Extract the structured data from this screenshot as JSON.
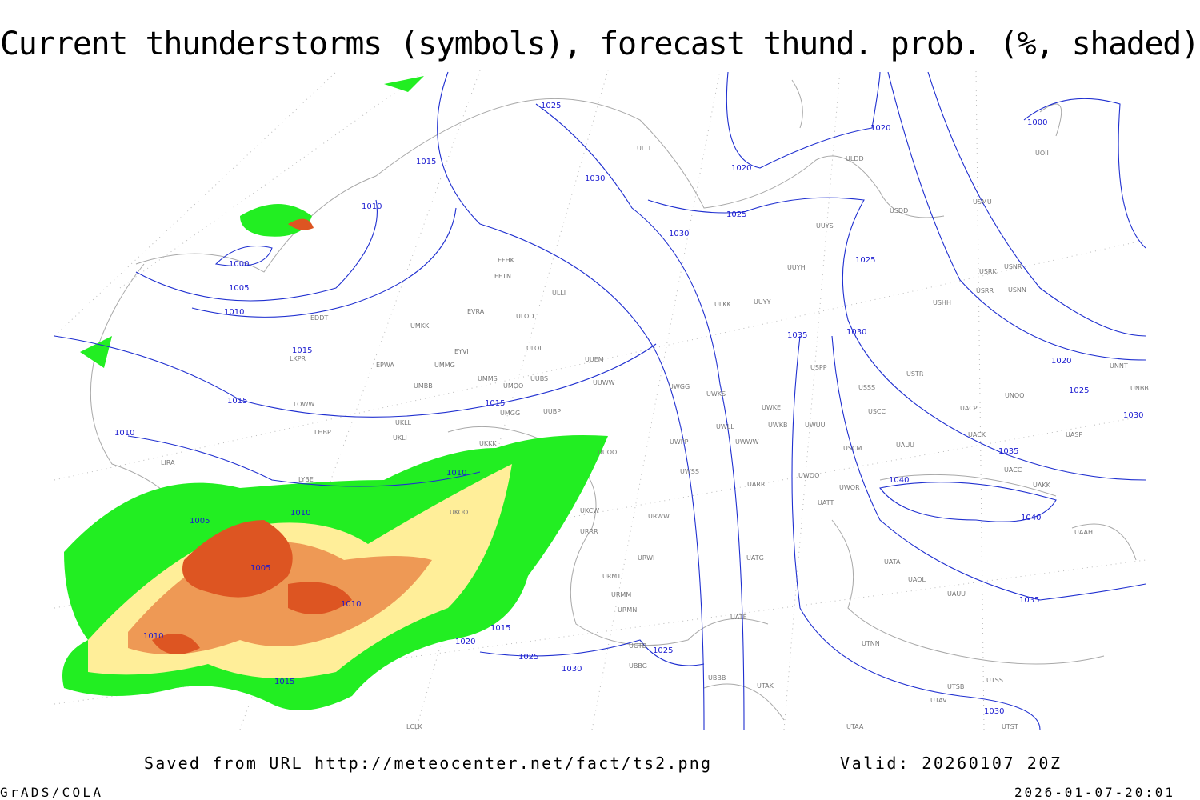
{
  "header": {
    "title": "Current thunderstorms (symbols), forecast thund. prob. (%, shaded)"
  },
  "footer": {
    "source": "Saved from URL http://meteocenter.net/fact/ts2.png",
    "valid": "Valid: 20260107 20Z",
    "credit": "GrADS/COLA",
    "timestamp": "2026-01-07-20:01"
  },
  "isobar_labels": [
    "1025",
    "1015",
    "1030",
    "1020",
    "1020",
    "1025",
    "1030",
    "1010",
    "1000",
    "1005",
    "1010",
    "1025",
    "1035",
    "1030",
    "1020",
    "1025",
    "1030",
    "1015",
    "1015",
    "1015",
    "1010",
    "1035",
    "1040",
    "1040",
    "1010",
    "1005",
    "1010",
    "1005",
    "1010",
    "1010",
    "1015",
    "1020",
    "1025",
    "1030",
    "1025",
    "1015",
    "1035",
    "1030",
    "1000"
  ],
  "stations": [
    "EFHK",
    "EETN",
    "ULLI",
    "EVRA",
    "ULOD",
    "UMKK",
    "EYVI",
    "ULOL",
    "EDDT",
    "EPWA",
    "UMMG",
    "LKPR",
    "UMMS",
    "UMOO",
    "UUBS",
    "UUEM",
    "UUWW",
    "UMBB",
    "LOWW",
    "UKLL",
    "UMGG",
    "UUBP",
    "UKLI",
    "LHBP",
    "UKKK",
    "UUOO",
    "LIRA",
    "LYBE",
    "UKOO",
    "UKCW",
    "URRR",
    "URWI",
    "URMT",
    "URMM",
    "URMN",
    "URWW",
    "UWGG",
    "UWKS",
    "UWKE",
    "UWKB",
    "UWUU",
    "UWPP",
    "UWSS",
    "UWWW",
    "UWLL",
    "UARR",
    "UWOO",
    "UWOR",
    "UATT",
    "USCM",
    "UAUU",
    "USSS",
    "USCC",
    "UACP",
    "UACK",
    "UNOO",
    "USTR",
    "USPP",
    "UUYS",
    "UUYH",
    "ULKK",
    "UUYY",
    "ULDD",
    "USDD",
    "USMU",
    "USRK",
    "USNR",
    "USRR",
    "USNN",
    "USHH",
    "UNNT",
    "UNBB",
    "UASP",
    "UACC",
    "UAKK",
    "UAAH",
    "UATA",
    "UAOL",
    "UAUU",
    "UATG",
    "UATE",
    "UBBB",
    "UTAK",
    "UTSS",
    "UTSB",
    "UTAV",
    "UTNN",
    "UTST",
    "UTAA",
    "LCLK",
    "UOII",
    "ULLL",
    "UGTB",
    "UBBG"
  ]
}
